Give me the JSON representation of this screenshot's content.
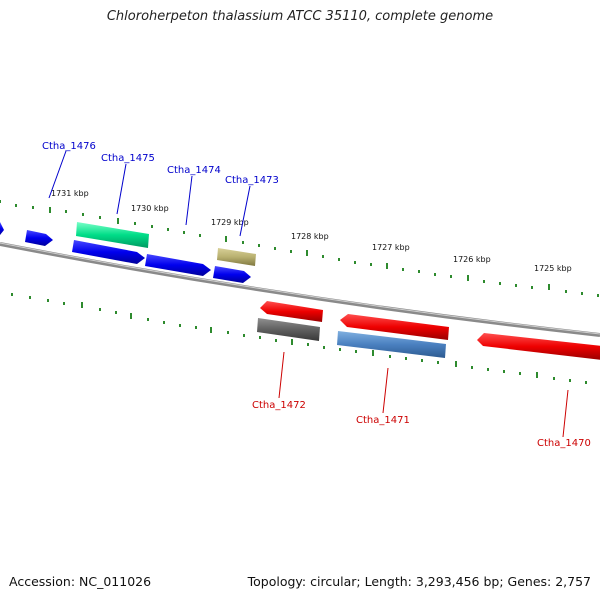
{
  "title": "Chloroherpeton thalassium ATCC 35110, complete genome",
  "footer": {
    "accession": "Accession: NC_011026",
    "summary": "Topology: circular; Length: 3,293,456 bp; Genes: 2,757"
  },
  "colors": {
    "backbone": "#8a8a8a",
    "tick": "#2e8b2e",
    "forward_label": "#0000cc",
    "reverse_label": "#cc0000"
  },
  "kbp_labels": [
    "1731 kbp",
    "1730 kbp",
    "1729 kbp",
    "1728 kbp",
    "1727 kbp",
    "1726 kbp",
    "1725 kbp"
  ],
  "forward_genes": [
    {
      "label": "Ctha_1476",
      "color": "#00dd88"
    },
    {
      "label": "Ctha_1475",
      "color": "#0000ee"
    },
    {
      "label": "Ctha_1474",
      "color": "#0000ee"
    },
    {
      "label": "Ctha_1473",
      "color": "#b8b070"
    }
  ],
  "reverse_genes": [
    {
      "label": "Ctha_1472",
      "color": "#606060"
    },
    {
      "label": "Ctha_1471",
      "color": "#4a80c0"
    },
    {
      "label": "Ctha_1470",
      "color": "#ee0000"
    }
  ]
}
